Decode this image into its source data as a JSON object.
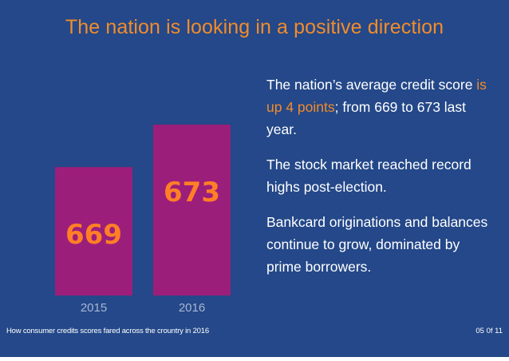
{
  "title": "The nation is looking in a positive direction",
  "chart_data": {
    "type": "bar",
    "categories": [
      "2015",
      "2016"
    ],
    "values": [
      669,
      673
    ],
    "value_labels": [
      "669",
      "673"
    ],
    "title": "",
    "xlabel": "",
    "ylabel": "",
    "colors": {
      "bar": "#9c1e7b",
      "value_label": "#ff7f26",
      "tick_label": "#a9b6d4"
    }
  },
  "facts": {
    "fact1": {
      "before": "The nation’s average credit score ",
      "highlight": "is up 4 points",
      "after": "; from 669 to 673 last year."
    },
    "fact2": "The stock market reached record highs post-election.",
    "fact3": "Bankcard originations and balances continue to grow, dominated by prime borrowers."
  },
  "footer": {
    "caption": "How consumer credits scores fared across the crountry in 2016",
    "page": "05 0f 11"
  },
  "colors": {
    "background": "#244889",
    "accent": "#f28c2a",
    "text": "#ffffff"
  }
}
